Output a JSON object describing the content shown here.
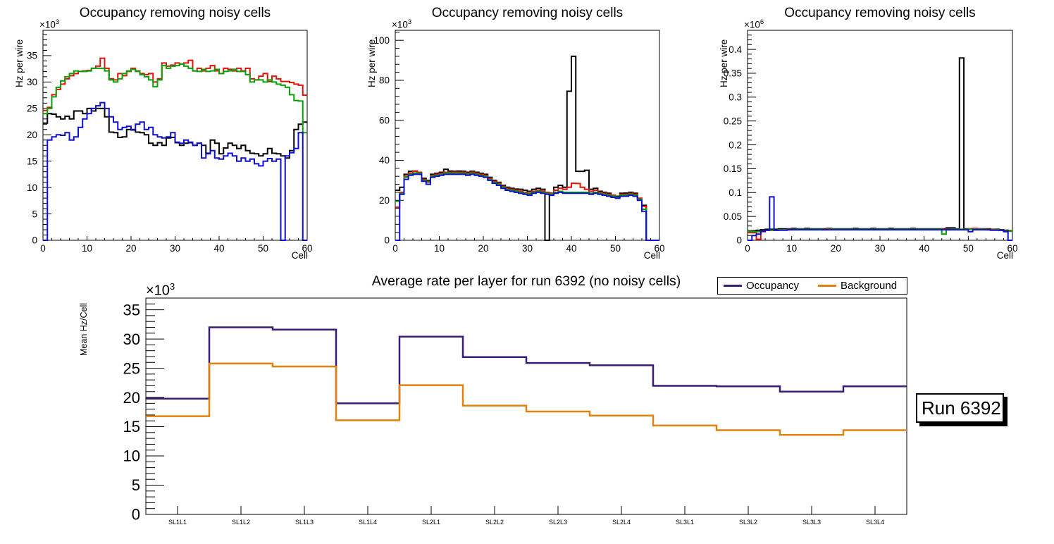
{
  "colors": {
    "black": "#000000",
    "red": "#e01208",
    "green": "#09a009",
    "blue": "#0f0fd0",
    "occupancy": "#3a1c78",
    "background": "#e2820e"
  },
  "legend": {
    "entries": [
      {
        "label": "Occupancy",
        "color": "occupancy"
      },
      {
        "label": "Background",
        "color": "background"
      }
    ]
  },
  "run_box": {
    "label": "Run 6392"
  },
  "chart_data": [
    {
      "type": "step-histogram",
      "title": "Occupancy removing noisy cells",
      "xlabel": "Cell",
      "ylabel": "Hz per wire",
      "scale_base": "×10",
      "scale_exp": "3",
      "xlim": [
        0,
        60
      ],
      "ylim": [
        0,
        39.8
      ],
      "xticks": [
        0,
        10,
        20,
        30,
        40,
        50,
        60
      ],
      "xtick_labels": [
        "0",
        "10",
        "20",
        "30",
        "40",
        "50",
        "60"
      ],
      "x_minor_step": 2,
      "yticks": [
        0,
        5,
        10,
        15,
        20,
        25,
        30,
        35
      ],
      "ytick_labels": [
        "0",
        "5",
        "10",
        "15",
        "20",
        "25",
        "30",
        "35"
      ],
      "y_minor_step": 1,
      "grid": false,
      "series": [
        {
          "name": "black",
          "color": "black",
          "values": [
            22.2,
            24.0,
            23.9,
            23.4,
            23.0,
            23.5,
            23.0,
            24.5,
            24.5,
            24.0,
            25.0,
            24.5,
            25.0,
            25.0,
            23.4,
            20.5,
            20.4,
            19.5,
            19.6,
            21.0,
            20.9,
            20.5,
            20.4,
            20.0,
            18.4,
            18.0,
            18.5,
            18.0,
            19.4,
            19.5,
            18.5,
            18.0,
            18.4,
            18.5,
            18.0,
            18.4,
            18.0,
            16.5,
            19.0,
            18.4,
            16.4,
            17.5,
            18.4,
            18.0,
            17.4,
            18.0,
            17.0,
            16.5,
            16.4,
            16.0,
            16.4,
            17.4,
            16.5,
            16.4,
            16.0,
            15.6,
            17.0,
            21.0,
            22.0,
            22.4
          ]
        },
        {
          "name": "red",
          "color": "red",
          "values": [
            24.6,
            25.2,
            27.6,
            28.6,
            29.6,
            30.6,
            31.2,
            31.6,
            32.0,
            32.1,
            32.2,
            32.6,
            33.0,
            34.5,
            32.6,
            30.6,
            30.4,
            31.6,
            31.2,
            32.0,
            32.6,
            32.1,
            31.6,
            31.4,
            31.6,
            30.0,
            30.6,
            33.6,
            33.0,
            33.2,
            33.6,
            33.4,
            33.6,
            34.1,
            32.1,
            32.6,
            32.1,
            32.6,
            33.1,
            32.1,
            31.6,
            32.6,
            32.4,
            32.1,
            32.6,
            32.1,
            32.6,
            30.6,
            30.4,
            31.1,
            31.6,
            30.1,
            31.1,
            30.6,
            30.1,
            30.1,
            29.9,
            29.6,
            29.4,
            27.5
          ]
        },
        {
          "name": "green",
          "color": "green",
          "values": [
            24.0,
            25.0,
            27.2,
            29.0,
            30.2,
            31.0,
            31.6,
            32.1,
            32.0,
            32.0,
            32.1,
            32.6,
            32.6,
            32.6,
            32.1,
            30.4,
            30.0,
            30.6,
            31.6,
            32.1,
            32.4,
            32.0,
            31.4,
            31.0,
            30.4,
            29.1,
            30.4,
            33.1,
            32.6,
            33.0,
            33.1,
            33.4,
            33.0,
            32.6,
            32.1,
            32.0,
            32.4,
            32.0,
            32.1,
            32.4,
            31.6,
            32.0,
            32.1,
            32.4,
            32.0,
            32.0,
            31.4,
            30.0,
            30.4,
            30.4,
            30.0,
            30.4,
            30.0,
            29.6,
            29.4,
            29.0,
            27.6,
            26.5,
            26.4,
            20.4
          ]
        },
        {
          "name": "blue",
          "color": "blue",
          "values": [
            0,
            19.0,
            19.6,
            20.0,
            19.9,
            20.4,
            19.0,
            19.6,
            21.4,
            23.0,
            24.0,
            25.0,
            25.5,
            26.1,
            25.0,
            23.4,
            22.4,
            21.0,
            21.4,
            21.6,
            21.0,
            22.0,
            22.4,
            21.0,
            21.4,
            20.0,
            19.6,
            19.4,
            19.6,
            20.4,
            18.6,
            18.4,
            19.0,
            18.6,
            18.0,
            18.4,
            15.6,
            16.4,
            17.0,
            15.6,
            15.4,
            16.0,
            16.5,
            16.0,
            15.0,
            15.6,
            15.0,
            15.4,
            14.5,
            14.1,
            15.0,
            15.5,
            15.0,
            15.4,
            0,
            16.0,
            16.6,
            17.4,
            20.4,
            0
          ]
        }
      ]
    },
    {
      "type": "step-histogram",
      "title": "Occupancy removing noisy cells",
      "xlabel": "Cell",
      "ylabel": "Hz per wire",
      "scale_base": "×10",
      "scale_exp": "3",
      "xlim": [
        0,
        60
      ],
      "ylim": [
        0,
        105
      ],
      "xticks": [
        0,
        10,
        20,
        30,
        40,
        50,
        60
      ],
      "xtick_labels": [
        "0",
        "10",
        "20",
        "30",
        "40",
        "50",
        "60"
      ],
      "x_minor_step": 2,
      "yticks": [
        0,
        20,
        40,
        60,
        80,
        100
      ],
      "ytick_labels": [
        "0",
        "20",
        "40",
        "60",
        "80",
        "100"
      ],
      "y_minor_step": 4,
      "grid": false,
      "series": [
        {
          "name": "black",
          "color": "black",
          "values": [
            25.0,
            26.5,
            33.0,
            34.5,
            34.6,
            34.0,
            31.0,
            30.0,
            33.0,
            33.5,
            34.0,
            35.5,
            34.6,
            34.5,
            34.6,
            34.5,
            34.0,
            34.5,
            34.0,
            33.5,
            33.0,
            31.5,
            30.0,
            29.0,
            27.5,
            26.5,
            26.0,
            25.6,
            25.5,
            25.0,
            24.5,
            25.5,
            26.0,
            25.5,
            0,
            23.5,
            26.5,
            27.5,
            26.5,
            74.5,
            92.0,
            34.5,
            34.5,
            35.0,
            25.5,
            26.0,
            24.5,
            24.0,
            23.5,
            22.5,
            22.0,
            23.5,
            23.6,
            24.0,
            23.5,
            21.0,
            17.5,
            0,
            0,
            0
          ]
        },
        {
          "name": "red",
          "color": "red",
          "values": [
            16.5,
            24.0,
            32.0,
            33.6,
            34.5,
            34.0,
            30.5,
            29.5,
            32.5,
            33.0,
            33.5,
            34.0,
            34.0,
            34.1,
            34.0,
            34.0,
            33.5,
            34.0,
            33.5,
            33.0,
            32.5,
            31.0,
            29.5,
            28.5,
            27.0,
            26.0,
            25.5,
            25.0,
            24.6,
            24.0,
            23.5,
            24.5,
            25.0,
            24.6,
            24.0,
            23.5,
            25.0,
            26.0,
            25.5,
            26.5,
            28.5,
            28.4,
            26.5,
            25.5,
            24.5,
            25.0,
            24.0,
            23.5,
            23.0,
            22.5,
            21.5,
            23.0,
            23.0,
            23.5,
            23.0,
            21.0,
            17.0,
            0,
            0,
            0
          ]
        },
        {
          "name": "green",
          "color": "green",
          "values": [
            19.5,
            23.5,
            31.5,
            33.0,
            33.6,
            33.5,
            30.0,
            29.0,
            32.0,
            32.5,
            33.0,
            33.5,
            33.6,
            33.5,
            33.5,
            33.5,
            33.0,
            33.5,
            33.0,
            32.5,
            32.0,
            30.5,
            29.0,
            28.0,
            26.5,
            25.5,
            25.0,
            24.6,
            24.0,
            23.5,
            23.0,
            24.0,
            24.5,
            24.0,
            23.5,
            23.0,
            24.0,
            24.5,
            24.0,
            24.0,
            24.0,
            24.0,
            24.0,
            24.0,
            23.5,
            24.0,
            23.5,
            23.0,
            22.5,
            22.0,
            21.5,
            22.5,
            22.6,
            23.0,
            22.5,
            20.5,
            15.5,
            0,
            0,
            0
          ]
        },
        {
          "name": "blue",
          "color": "blue",
          "values": [
            0,
            23.0,
            30.5,
            32.5,
            33.0,
            33.0,
            29.5,
            28.0,
            31.5,
            32.0,
            32.5,
            33.0,
            33.0,
            33.0,
            33.0,
            33.0,
            32.5,
            33.0,
            32.5,
            32.0,
            31.5,
            30.0,
            28.5,
            27.5,
            26.0,
            25.0,
            24.5,
            24.0,
            23.5,
            23.0,
            22.5,
            23.5,
            24.0,
            23.5,
            23.0,
            22.5,
            23.5,
            24.0,
            23.5,
            23.5,
            23.5,
            23.5,
            23.5,
            23.5,
            23.0,
            23.5,
            23.0,
            22.5,
            22.0,
            21.5,
            21.0,
            22.0,
            22.0,
            22.5,
            22.0,
            20.0,
            14.5,
            0,
            0,
            0
          ]
        }
      ]
    },
    {
      "type": "step-histogram",
      "title": "Occupancy removing noisy cells",
      "xlabel": "Cell",
      "ylabel": "Hz per wire",
      "scale_base": "×10",
      "scale_exp": "6",
      "xlim": [
        0,
        60
      ],
      "ylim": [
        0,
        0.44
      ],
      "xticks": [
        0,
        10,
        20,
        30,
        40,
        50,
        60
      ],
      "xtick_labels": [
        "0",
        "10",
        "20",
        "30",
        "40",
        "50",
        "60"
      ],
      "x_minor_step": 2,
      "yticks": [
        0,
        0.05,
        0.1,
        0.15,
        0.2,
        0.25,
        0.3,
        0.35,
        0.4
      ],
      "ytick_labels": [
        "0",
        "0.05",
        "0.1",
        "0.15",
        "0.2",
        "0.25",
        "0.3",
        "0.35",
        "0.4"
      ],
      "y_minor_step": 0.01,
      "grid": false,
      "series": [
        {
          "name": "black",
          "color": "black",
          "values": [
            0.02,
            0.02,
            0.021,
            0.022,
            0.023,
            0.023,
            0.023,
            0.024,
            0.024,
            0.024,
            0.025,
            0.024,
            0.024,
            0.025,
            0.024,
            0.024,
            0.024,
            0.024,
            0.025,
            0.024,
            0.024,
            0.024,
            0.024,
            0.024,
            0.025,
            0.024,
            0.024,
            0.024,
            0.025,
            0.024,
            0.024,
            0.024,
            0.025,
            0.024,
            0.024,
            0.024,
            0.024,
            0.025,
            0.024,
            0.024,
            0.024,
            0.024,
            0.024,
            0.024,
            0.024,
            0.026,
            0.026,
            0.024,
            0.382,
            0.024,
            0.024,
            0.024,
            0.024,
            0.024,
            0.024,
            0.023,
            0.023,
            0.022,
            0.021,
            0.02
          ]
        },
        {
          "name": "red",
          "color": "red",
          "values": [
            0.016,
            0.016,
            0.002,
            0.018,
            0.021,
            0.021,
            0.021,
            0.022,
            0.022,
            0.023,
            0.023,
            0.023,
            0.023,
            0.023,
            0.023,
            0.023,
            0.023,
            0.023,
            0.024,
            0.023,
            0.023,
            0.023,
            0.023,
            0.023,
            0.023,
            0.023,
            0.023,
            0.023,
            0.023,
            0.023,
            0.023,
            0.023,
            0.023,
            0.023,
            0.023,
            0.023,
            0.023,
            0.023,
            0.023,
            0.023,
            0.023,
            0.023,
            0.023,
            0.023,
            0.023,
            0.023,
            0.023,
            0.023,
            0.023,
            0.023,
            0.024,
            0.025,
            0.024,
            0.023,
            0.023,
            0.023,
            0.022,
            0.021,
            0.019,
            0.019
          ]
        },
        {
          "name": "green",
          "color": "green",
          "values": [
            0.019,
            0.018,
            0.018,
            0.019,
            0.021,
            0.021,
            0.021,
            0.022,
            0.022,
            0.022,
            0.023,
            0.023,
            0.023,
            0.023,
            0.023,
            0.023,
            0.023,
            0.022,
            0.023,
            0.023,
            0.023,
            0.023,
            0.023,
            0.023,
            0.023,
            0.023,
            0.023,
            0.023,
            0.023,
            0.023,
            0.023,
            0.023,
            0.023,
            0.023,
            0.023,
            0.023,
            0.023,
            0.023,
            0.023,
            0.023,
            0.023,
            0.023,
            0.023,
            0.023,
            0.013,
            0.022,
            0.023,
            0.023,
            0.023,
            0.023,
            0.023,
            0.023,
            0.023,
            0.023,
            0.022,
            0.022,
            0.022,
            0.021,
            0.019,
            0.019
          ]
        },
        {
          "name": "blue",
          "color": "blue",
          "values": [
            0,
            0.01,
            0.013,
            0.019,
            0.021,
            0.091,
            0.021,
            0.021,
            0.021,
            0.022,
            0.022,
            0.022,
            0.022,
            0.022,
            0.022,
            0.022,
            0.022,
            0.022,
            0.022,
            0.022,
            0.022,
            0.022,
            0.022,
            0.022,
            0.022,
            0.022,
            0.022,
            0.022,
            0.022,
            0.022,
            0.022,
            0.022,
            0.022,
            0.022,
            0.022,
            0.022,
            0.022,
            0.022,
            0.022,
            0.022,
            0.022,
            0.022,
            0.022,
            0.022,
            0.022,
            0.022,
            0.022,
            0.022,
            0.022,
            0.022,
            0.018,
            0.022,
            0.022,
            0.022,
            0.022,
            0.021,
            0.021,
            0.021,
            0.018,
            0
          ]
        }
      ]
    },
    {
      "type": "step-histogram-labeled",
      "title": "Average rate per layer for run 6392 (no noisy cells)",
      "xlabel": "",
      "ylabel": "Mean Hz/Cell",
      "scale_base": "×10",
      "scale_exp": "3",
      "categories": [
        "SL1L1",
        "SL1L2",
        "SL1L3",
        "SL1L4",
        "SL2L1",
        "SL2L2",
        "SL2L3",
        "SL2L4",
        "SL3L1",
        "SL3L2",
        "SL3L3",
        "SL3L4"
      ],
      "ylim": [
        0,
        37
      ],
      "yticks": [
        0,
        5,
        10,
        15,
        20,
        25,
        30,
        35
      ],
      "ytick_labels": [
        "0",
        "5",
        "10",
        "15",
        "20",
        "25",
        "30",
        "35"
      ],
      "y_minor_step": 1,
      "grid": false,
      "legend_position": "top-right",
      "series": [
        {
          "name": "Occupancy",
          "color": "occupancy",
          "values": [
            19.8,
            32.0,
            31.6,
            19.0,
            30.4,
            26.9,
            25.9,
            25.5,
            22.0,
            21.9,
            21.0,
            21.9
          ]
        },
        {
          "name": "Background",
          "color": "background",
          "values": [
            16.8,
            25.8,
            25.3,
            16.1,
            22.1,
            18.6,
            17.6,
            16.9,
            15.2,
            14.4,
            13.6,
            14.4
          ]
        }
      ]
    }
  ]
}
